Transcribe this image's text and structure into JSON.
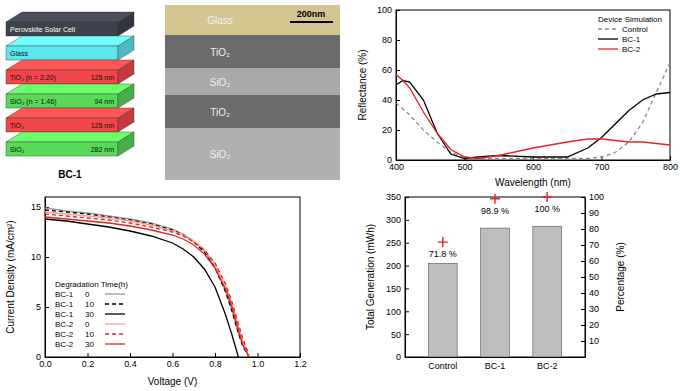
{
  "diagram": {
    "title": "BC-1",
    "layers": [
      {
        "label": "Perovskite Solar Cell",
        "color": "#3d424d"
      },
      {
        "label": "Glass",
        "color": "#5ee6ee"
      },
      {
        "label": "TiO₂ (n = 2.20)",
        "thickness": "125 nm",
        "color": "#f04848"
      },
      {
        "label": "SiO₂ (n = 1.46)",
        "thickness": "94 nm",
        "color": "#5ad85a"
      },
      {
        "label": "TiO₂",
        "thickness": "125 nm",
        "color": "#f04848"
      },
      {
        "label": "SiO₂",
        "thickness": "282 nm",
        "color": "#5ad85a"
      }
    ]
  },
  "micrograph": {
    "scale_bar": "200nm",
    "layers": [
      {
        "label": "Glass",
        "color": "#d4c48f"
      },
      {
        "label": "TiO₂",
        "color": "#6b6b6b"
      },
      {
        "label": "SiO₂",
        "color": "#a9a9a9"
      },
      {
        "label": "TiO₂",
        "color": "#6b6b6b"
      },
      {
        "label": "SiO₂",
        "color": "#b0b0b0"
      }
    ]
  },
  "chart_data": [
    {
      "type": "line",
      "legend_title": "Device Simulation",
      "legend": "upper right",
      "x_label": "Wavelength (nm)",
      "y_label": "Reflectance (%)",
      "x": [
        400,
        410,
        420,
        440,
        460,
        480,
        500,
        520,
        550,
        600,
        650,
        680,
        700,
        720,
        740,
        760,
        780,
        800
      ],
      "xlim": [
        400,
        800
      ],
      "xticks": [
        400,
        500,
        600,
        700,
        800
      ],
      "ylim": [
        0,
        100
      ],
      "yticks": [
        0,
        20,
        40,
        60,
        80,
        100
      ],
      "series": [
        {
          "name": "Control",
          "color": "#8c8c8c",
          "line_style": "dashed",
          "values": [
            38,
            34,
            30,
            20,
            12,
            5,
            2,
            1,
            1,
            1,
            1,
            1,
            2,
            5,
            12,
            25,
            45,
            65
          ]
        },
        {
          "name": "BC-1",
          "color": "#000000",
          "line_style": "solid",
          "values": [
            50,
            53,
            52,
            40,
            18,
            4,
            1,
            2,
            3,
            2,
            2,
            8,
            15,
            24,
            33,
            40,
            44,
            45
          ]
        },
        {
          "name": "BC-2",
          "color": "#e8231f",
          "line_style": "solid",
          "values": [
            57,
            53,
            48,
            32,
            18,
            7,
            2,
            1,
            3,
            8,
            12,
            14,
            14,
            13,
            12,
            12,
            11,
            10
          ]
        }
      ]
    },
    {
      "type": "line",
      "legend_title": "Degradation Time(h)",
      "legend": "lower left",
      "x_label": "Voltage (V)",
      "y_label": "Current Density (mA/cm²)",
      "x": [
        0,
        0.1,
        0.2,
        0.3,
        0.4,
        0.5,
        0.6,
        0.65,
        0.7,
        0.75,
        0.8,
        0.85,
        0.88,
        0.91,
        0.93,
        0.96
      ],
      "xlim": [
        0,
        1.2
      ],
      "xticks": [
        {
          "value": 0,
          "label": "0.0"
        },
        0.2,
        0.4,
        0.6,
        0.8,
        {
          "value": 1,
          "label": "1.0"
        },
        1.2
      ],
      "ylim": [
        0,
        16
      ],
      "yticks": [
        0,
        5,
        10,
        15
      ],
      "series": [
        {
          "name": "BC-1",
          "time": 0,
          "color": "#9a9a9a",
          "line_style": "solid",
          "values": [
            14.9,
            14.6,
            14.4,
            14.1,
            13.8,
            13.4,
            12.8,
            12.3,
            11.6,
            10.6,
            9.0,
            6.6,
            4.7,
            2.4,
            1.2,
            0
          ]
        },
        {
          "name": "BC-1",
          "time": 10,
          "color": "#000000",
          "line_style": "dashed",
          "values": [
            14.7,
            14.5,
            14.3,
            14.0,
            13.7,
            13.3,
            12.7,
            12.2,
            11.5,
            10.5,
            8.9,
            6.5,
            4.6,
            2.4,
            1.1,
            0
          ]
        },
        {
          "name": "BC-1",
          "time": 30,
          "color": "#000000",
          "line_style": "solid",
          "values": [
            13.8,
            13.6,
            13.3,
            13.0,
            12.6,
            12.1,
            11.4,
            10.8,
            10.0,
            8.8,
            7.0,
            4.2,
            2.2,
            0,
            null,
            null
          ]
        },
        {
          "name": "BC-2",
          "time": 0,
          "color": "#f4a0a0",
          "line_style": "solid",
          "values": [
            14.5,
            14.3,
            14.1,
            13.9,
            13.6,
            13.2,
            12.6,
            12.2,
            11.6,
            10.7,
            9.3,
            7.1,
            5.2,
            3.0,
            1.6,
            0
          ]
        },
        {
          "name": "BC-2",
          "time": 10,
          "color": "#e8231f",
          "line_style": "dashed",
          "values": [
            14.3,
            14.1,
            13.9,
            13.7,
            13.4,
            13.0,
            12.5,
            12.1,
            11.5,
            10.7,
            9.4,
            7.3,
            5.5,
            3.3,
            1.9,
            0.2
          ]
        },
        {
          "name": "BC-2",
          "time": 30,
          "color": "#e8231f",
          "line_style": "solid",
          "values": [
            14.0,
            13.8,
            13.6,
            13.4,
            13.1,
            12.7,
            12.2,
            11.8,
            11.2,
            10.3,
            8.9,
            6.8,
            5.0,
            2.7,
            1.3,
            0
          ]
        }
      ]
    },
    {
      "type": "bar",
      "y_label": "Total Generation (mWh)",
      "y2_label": "Percentage (%)",
      "categories": [
        "Control",
        "BC-1",
        "BC-2"
      ],
      "values": [
        205,
        282,
        286
      ],
      "color": "#bdbdbd",
      "ylim": [
        0,
        350
      ],
      "yticks": [
        0,
        50,
        100,
        150,
        200,
        250,
        300,
        350
      ],
      "y2lim": [
        0,
        100
      ],
      "y2ticks": [
        10,
        20,
        30,
        40,
        50,
        60,
        70,
        80,
        90,
        100
      ],
      "series": [
        {
          "type": "scatter",
          "axis": "y2",
          "marker": "plus",
          "color": "#e8231f",
          "data_labels": true,
          "values": [
            71.8,
            98.9,
            100
          ],
          "value_labels": [
            "71.8 %",
            "98.9 %",
            "100 %"
          ]
        }
      ]
    }
  ]
}
